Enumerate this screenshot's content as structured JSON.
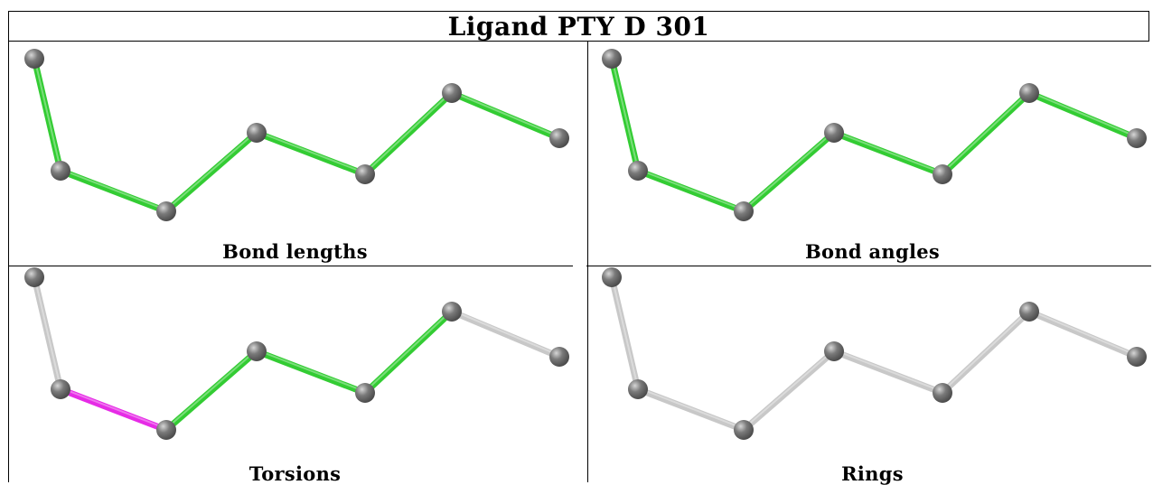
{
  "title": "Ligand PTY D 301",
  "colors": {
    "bond_green": "#33cc33",
    "bond_magenta": "#e62be6",
    "bond_grey": "#c8c8c8",
    "atom_grey": "#7a7a7a"
  },
  "panels": [
    {
      "caption": "Bond lengths",
      "bonds": [
        "green",
        "green",
        "green",
        "green",
        "green",
        "green"
      ]
    },
    {
      "caption": "Bond angles",
      "bonds": [
        "green",
        "green",
        "green",
        "green",
        "green",
        "green"
      ]
    },
    {
      "caption": "Torsions",
      "bonds": [
        "grey",
        "magenta",
        "green",
        "green",
        "green",
        "grey"
      ]
    },
    {
      "caption": "Rings",
      "bonds": [
        "grey",
        "grey",
        "grey",
        "grey",
        "grey",
        "grey"
      ]
    }
  ]
}
